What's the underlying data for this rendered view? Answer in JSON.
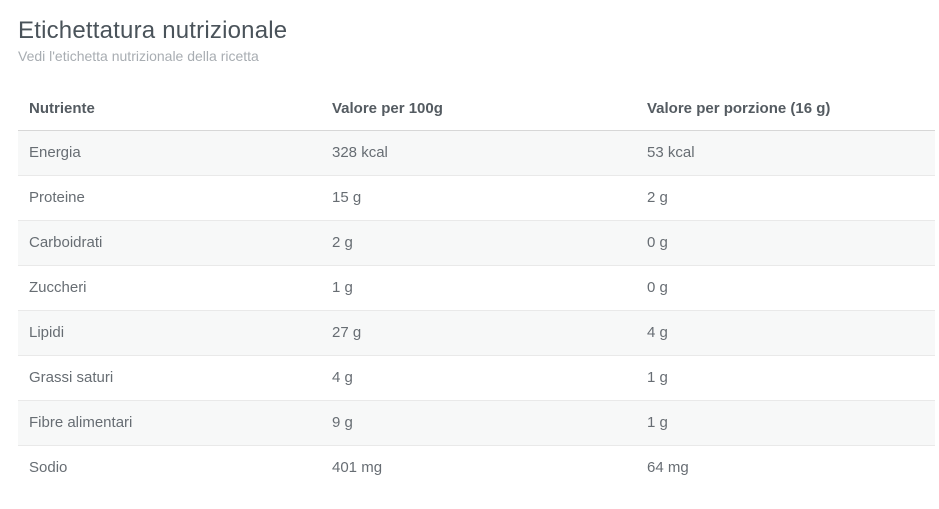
{
  "page": {
    "title": "Etichettatura nutrizionale",
    "subtitle": "Vedi l'etichetta nutrizionale della ricetta"
  },
  "table": {
    "columns": [
      {
        "label": "Nutriente"
      },
      {
        "label": "Valore per 100g"
      },
      {
        "label": "Valore per porzione (16 g)"
      }
    ],
    "rows": [
      {
        "nutrient": "Energia",
        "per_100g": "328 kcal",
        "per_portion": "53 kcal"
      },
      {
        "nutrient": "Proteine",
        "per_100g": "15 g",
        "per_portion": "2 g"
      },
      {
        "nutrient": "Carboidrati",
        "per_100g": "2 g",
        "per_portion": "0 g"
      },
      {
        "nutrient": "Zuccheri",
        "per_100g": "1 g",
        "per_portion": "0 g"
      },
      {
        "nutrient": "Lipidi",
        "per_100g": "27 g",
        "per_portion": "4 g"
      },
      {
        "nutrient": "Grassi saturi",
        "per_100g": "4 g",
        "per_portion": "1 g"
      },
      {
        "nutrient": "Fibre alimentari",
        "per_100g": "9 g",
        "per_portion": "1 g"
      },
      {
        "nutrient": "Sodio",
        "per_100g": "401 mg",
        "per_portion": "64 mg"
      }
    ]
  },
  "colors": {
    "title": "#4a535a",
    "subtitle": "#a8adb2",
    "header_text": "#545b61",
    "row_text": "#676d73",
    "stripe": "#f7f8f8",
    "row_border": "#e9e9e9",
    "header_border": "#d7d7d7",
    "page_bg": "#ffffff"
  }
}
